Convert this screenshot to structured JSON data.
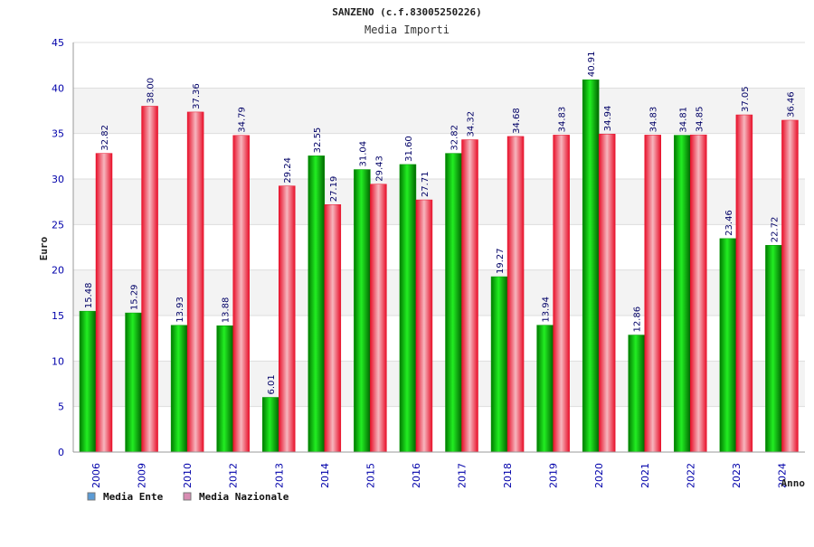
{
  "chart_data": {
    "type": "bar",
    "title": "SANZENO (c.f.83005250226)",
    "subtitle": "Media Importi",
    "ylabel": "Euro",
    "xlabel": "Anno",
    "ylim": [
      0,
      45
    ],
    "yticks": [
      "0",
      "5",
      "10",
      "15",
      "20",
      "25",
      "30",
      "35",
      "40",
      "45"
    ],
    "grid": true,
    "legend_position": "bottom-left",
    "categories": [
      "2006",
      "2009",
      "2010",
      "2012",
      "2013",
      "2014",
      "2015",
      "2016",
      "2017",
      "2018",
      "2019",
      "2020",
      "2021",
      "2022",
      "2023",
      "2024"
    ],
    "series": [
      {
        "name": "Media Ente",
        "color": "#00aa00",
        "legend_color": "#5b9bd5",
        "values": [
          15.48,
          15.29,
          13.93,
          13.88,
          6.01,
          32.55,
          31.04,
          31.6,
          32.82,
          19.27,
          13.94,
          40.91,
          12.86,
          34.81,
          23.46,
          22.72
        ],
        "labels": [
          "15.48",
          "15.29",
          "13.93",
          "13.88",
          "6.01",
          "32.55",
          "31.04",
          "31.60",
          "32.82",
          "19.27",
          "13.94",
          "40.91",
          "12.86",
          "34.81",
          "23.46",
          "22.72"
        ]
      },
      {
        "name": "Media Nazionale",
        "color": "#ee2222",
        "legend_color": "#d98cb3",
        "values": [
          32.82,
          38.0,
          37.36,
          34.79,
          29.24,
          27.19,
          29.43,
          27.71,
          34.32,
          34.68,
          34.83,
          34.94,
          34.83,
          34.85,
          37.05,
          36.46
        ],
        "labels": [
          "32.82",
          "38.00",
          "37.36",
          "34.79",
          "29.24",
          "27.19",
          "29.43",
          "27.71",
          "34.32",
          "34.68",
          "34.83",
          "34.94",
          "34.83",
          "34.85",
          "37.05",
          "36.46"
        ]
      }
    ]
  }
}
